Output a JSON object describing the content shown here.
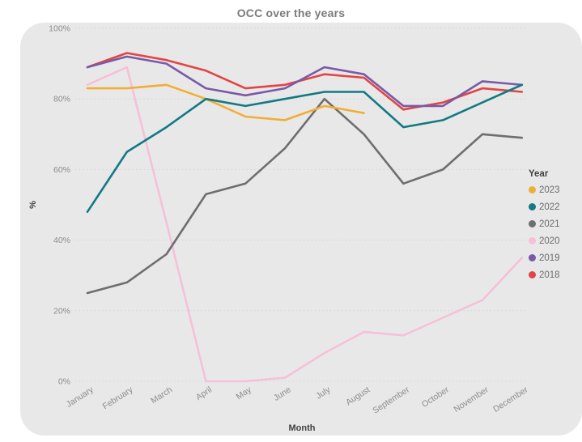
{
  "title": "OCC over the years",
  "colors": {
    "card_bg": "#e9e8e8",
    "grid": "#d4d3d3",
    "title_text": "#7b7b7b",
    "tick_text": "#8c8c8c",
    "axis_title_text": "#3f3f3f",
    "legend_text": "#6b6b6b"
  },
  "chart_data": {
    "type": "line",
    "title": "OCC over the years",
    "xlabel": "Month",
    "ylabel": "%",
    "ylim": [
      0,
      100
    ],
    "ytick_values": [
      0,
      20,
      40,
      60,
      80,
      100
    ],
    "ytick_labels": [
      "0%",
      "20%",
      "40%",
      "60%",
      "80%",
      "100%"
    ],
    "grid": "dotted-horizontal",
    "categories": [
      "January",
      "February",
      "March",
      "April",
      "May",
      "June",
      "July",
      "August",
      "September",
      "October",
      "November",
      "December"
    ],
    "legend": {
      "title": "Year",
      "position": "right"
    },
    "series": [
      {
        "name": "2023",
        "color": "#f1ae34",
        "values": [
          83,
          83,
          84,
          80,
          75,
          74,
          78,
          76,
          null,
          null,
          null,
          null
        ]
      },
      {
        "name": "2022",
        "color": "#117a83",
        "values": [
          48,
          65,
          72,
          80,
          78,
          80,
          82,
          82,
          72,
          74,
          79,
          84
        ]
      },
      {
        "name": "2021",
        "color": "#6e6e6e",
        "values": [
          25,
          28,
          36,
          53,
          56,
          66,
          80,
          70,
          56,
          60,
          70,
          69
        ]
      },
      {
        "name": "2020",
        "color": "#f5c0d8",
        "values": [
          84,
          89,
          45,
          0,
          0,
          1,
          8,
          14,
          13,
          18,
          23,
          35
        ]
      },
      {
        "name": "2019",
        "color": "#7a59a8",
        "values": [
          89,
          92,
          90,
          83,
          81,
          83,
          89,
          87,
          78,
          78,
          85,
          84
        ]
      },
      {
        "name": "2018",
        "color": "#e24545",
        "values": [
          89,
          93,
          91,
          88,
          83,
          84,
          87,
          86,
          77,
          79,
          83,
          82
        ]
      }
    ],
    "draw_order": [
      "2018",
      "2019",
      "2020",
      "2021",
      "2023",
      "2022"
    ]
  }
}
